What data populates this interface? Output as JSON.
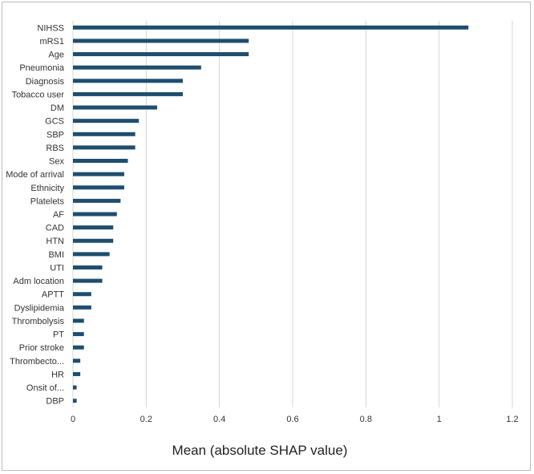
{
  "chart_data": {
    "type": "bar",
    "orientation": "horizontal",
    "title": "",
    "xlabel": "Mean (absolute SHAP value)",
    "ylabel": "",
    "xlim": [
      0,
      1.2
    ],
    "xticks": [
      0,
      0.2,
      0.4,
      0.6,
      0.8,
      1,
      1.2
    ],
    "grid": "vertical",
    "legend": "none",
    "bar_color": "#1f4e6e",
    "categories": [
      "NIHSS",
      "mRS1",
      "Age",
      "Pneumonia",
      "Diagnosis",
      "Tobacco user",
      "DM",
      "GCS",
      "SBP",
      "RBS",
      "Sex",
      "Mode of arrival",
      "Ethnicity",
      "Platelets",
      "AF",
      "CAD",
      "HTN",
      "BMI",
      "UTI",
      "Adm location",
      "APTT",
      "Dyslipidemia",
      "Thrombolysis",
      "PT",
      "Prior stroke",
      "Thrombecto...",
      "HR",
      "Onsit of...",
      "DBP"
    ],
    "values": [
      1.08,
      0.48,
      0.48,
      0.35,
      0.3,
      0.3,
      0.23,
      0.18,
      0.17,
      0.17,
      0.15,
      0.14,
      0.14,
      0.13,
      0.12,
      0.11,
      0.11,
      0.1,
      0.08,
      0.08,
      0.05,
      0.05,
      0.03,
      0.03,
      0.03,
      0.02,
      0.02,
      0.01,
      0.01
    ]
  }
}
